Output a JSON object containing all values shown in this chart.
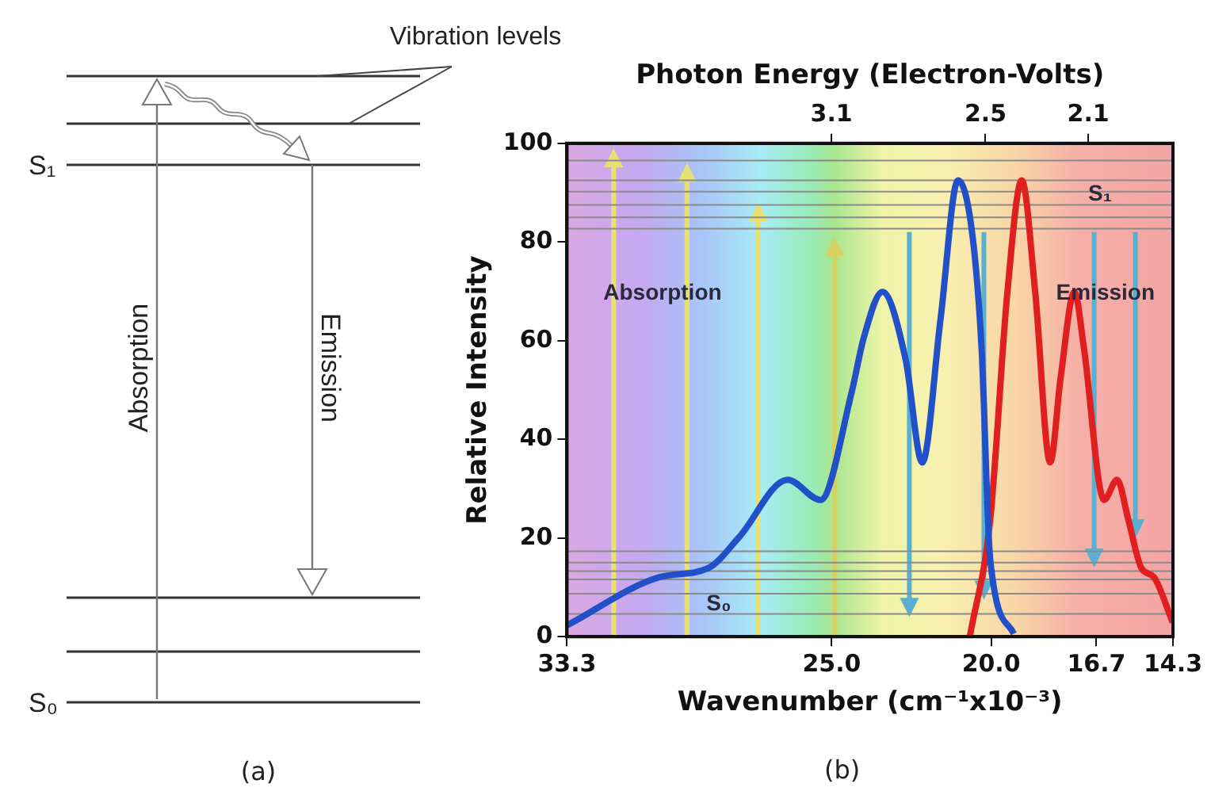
{
  "chart_data": [
    {
      "type": "other",
      "annotations": [
        "Vibration levels",
        "S₁",
        "S₀",
        "Absorption",
        "Emission",
        "(a)"
      ]
    },
    {
      "type": "line",
      "x2label": "Photon Energy (Electron-Volts)",
      "xlabel": "Wavenumber (cm⁻¹x10⁻³)",
      "ylabel": "Relative Intensity",
      "xlim": [
        33.3,
        14.3
      ],
      "xticks": [
        33.3,
        {
          "value": 25,
          "label": "25.0"
        },
        {
          "value": 20,
          "label": "20.0"
        },
        16.7,
        14.3
      ],
      "x2lim": [
        4.13,
        1.77
      ],
      "x2ticks": [
        3.1,
        2.5,
        2.1
      ],
      "ylim": [
        0,
        100
      ],
      "yticks": [
        0,
        20,
        40,
        60,
        80,
        100
      ],
      "grid": false,
      "legend": false,
      "marker": "none",
      "line_style": "solid",
      "series": [
        {
          "color": "#2250c8",
          "x": [
            33.3,
            30.38,
            28.87,
            27.9,
            26.38,
            25.35,
            24.39,
            23.99,
            23.41,
            22.68,
            22.16,
            21.59,
            21.04,
            20.59,
            20.3,
            20.03,
            19.29
          ],
          "values": [
            2.3,
            12.1,
            13.9,
            20.2,
            31.8,
            27.7,
            49.1,
            60.7,
            69.9,
            56.1,
            35.3,
            64.2,
            92.5,
            81.5,
            58.4,
            15.6,
            0.6
          ]
        },
        {
          "color": "#e02020",
          "x": [
            20.67,
            20.03,
            19.49,
            19.04,
            18.62,
            18.15,
            17.82,
            17.39,
            17.09,
            16.46,
            16.05,
            15.7,
            15.29,
            14.9,
            14.31
          ],
          "values": [
            0,
            23.7,
            69.9,
            92.5,
            69.9,
            35.3,
            52.6,
            69.9,
            58.4,
            27.7,
            31.8,
            23.7,
            13.9,
            12.1,
            2.9
          ]
        }
      ],
      "ref_lines": [
        {
          "axis": "y",
          "value": 96.5,
          "color": "#8a8a8a"
        },
        {
          "axis": "y",
          "value": 92.5,
          "color": "#8a8a8a"
        },
        {
          "axis": "y",
          "value": 90.2,
          "color": "#8a8a8a"
        },
        {
          "axis": "y",
          "value": 87.5,
          "color": "#8a8a8a"
        },
        {
          "axis": "y",
          "value": 85,
          "color": "#8a8a8a"
        },
        {
          "axis": "y",
          "value": 82.7,
          "color": "#8a8a8a"
        },
        {
          "axis": "y",
          "value": 17.3,
          "color": "#8a8a8a"
        },
        {
          "axis": "y",
          "value": 15,
          "color": "#8a8a8a"
        },
        {
          "axis": "y",
          "value": 13.3,
          "color": "#8a8a8a"
        },
        {
          "axis": "y",
          "value": 11.6,
          "color": "#8a8a8a"
        },
        {
          "axis": "y",
          "value": 8.7,
          "color": "#8a8a8a"
        },
        {
          "axis": "y",
          "value": 4.6,
          "color": "#8a8a8a"
        }
      ],
      "annotations": [
        "Absorption",
        "Emission",
        "S₁",
        "S₀",
        "(b)"
      ]
    }
  ]
}
